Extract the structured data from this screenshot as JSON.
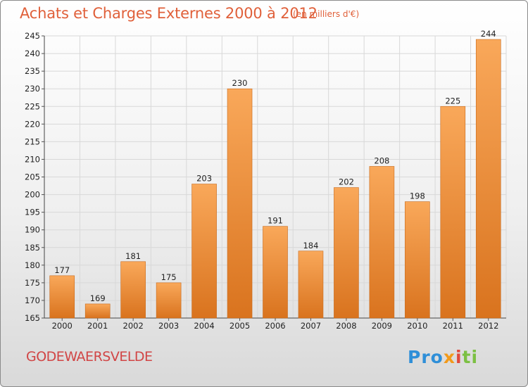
{
  "header": {
    "title": "Achats et Charges Externes 2000 à 2012",
    "unit": "(en milliers d'€)"
  },
  "footer": {
    "commune": "GODEWAERSVELDE",
    "logo_parts": [
      "Pro",
      "x",
      "i",
      "ti"
    ]
  },
  "colors": {
    "title": "#e0603a",
    "commune": "#d14545",
    "bar_top": "#f9a85a",
    "bar_bottom": "#d9731e",
    "grid": "#d8d8d8"
  },
  "chart_data": {
    "type": "bar",
    "title": "Achats et Charges Externes 2000 à 2012",
    "xlabel": "",
    "ylabel": "",
    "categories": [
      "2000",
      "2001",
      "2002",
      "2003",
      "2004",
      "2005",
      "2006",
      "2007",
      "2008",
      "2009",
      "2010",
      "2011",
      "2012"
    ],
    "values": [
      177,
      169,
      181,
      175,
      203,
      230,
      191,
      184,
      202,
      208,
      198,
      225,
      244
    ],
    "ylim": [
      165,
      245
    ],
    "yticks": [
      165,
      170,
      175,
      180,
      185,
      190,
      195,
      200,
      205,
      210,
      215,
      220,
      225,
      230,
      235,
      240,
      245
    ],
    "grid": true,
    "legend": "none"
  }
}
